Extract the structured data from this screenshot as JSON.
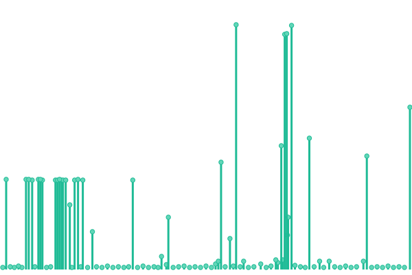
{
  "chart_data": {
    "type": "lollipop",
    "color": "#1fbb96",
    "marker_color": "#62d6b8",
    "x": [
      3,
      8,
      14,
      20,
      26,
      31,
      37,
      41,
      46,
      50,
      55,
      58,
      61,
      67,
      73,
      80,
      83,
      86,
      89,
      91,
      95,
      101,
      104,
      108,
      113,
      117,
      120,
      127,
      134,
      140,
      148,
      156,
      164,
      172,
      180,
      187,
      193,
      200,
      208,
      216,
      224,
      230,
      235,
      242,
      245,
      252,
      260,
      268,
      276,
      284,
      292,
      300,
      308,
      314,
      318,
      322,
      328,
      335,
      340,
      344,
      350,
      355,
      362,
      370,
      380,
      388,
      395,
      402,
      405,
      410,
      412,
      415,
      418,
      419,
      420,
      425,
      430,
      438,
      445,
      451,
      458,
      466,
      472,
      480,
      488,
      496,
      504,
      512,
      520,
      530,
      535,
      542,
      550,
      558,
      566,
      574,
      582,
      590,
      598
    ],
    "values": [
      3,
      131,
      4,
      3,
      5,
      3,
      131,
      131,
      130,
      4,
      131,
      131,
      130,
      3,
      4,
      130,
      130,
      131,
      130,
      130,
      130,
      94,
      3,
      130,
      131,
      4,
      130,
      3,
      55,
      4,
      3,
      5,
      3,
      4,
      3,
      4,
      130,
      3,
      5,
      3,
      4,
      3,
      19,
      7,
      76,
      3,
      4,
      5,
      3,
      4,
      3,
      5,
      3,
      8,
      12,
      156,
      4,
      45,
      5,
      356,
      4,
      12,
      3,
      4,
      8,
      3,
      5,
      14,
      10,
      180,
      14,
      342,
      343,
      50,
      76,
      355,
      6,
      4,
      3,
      191,
      4,
      12,
      3,
      12,
      4,
      3,
      5,
      3,
      4,
      12,
      165,
      3,
      4,
      3,
      5,
      3,
      4,
      3,
      236
    ]
  }
}
